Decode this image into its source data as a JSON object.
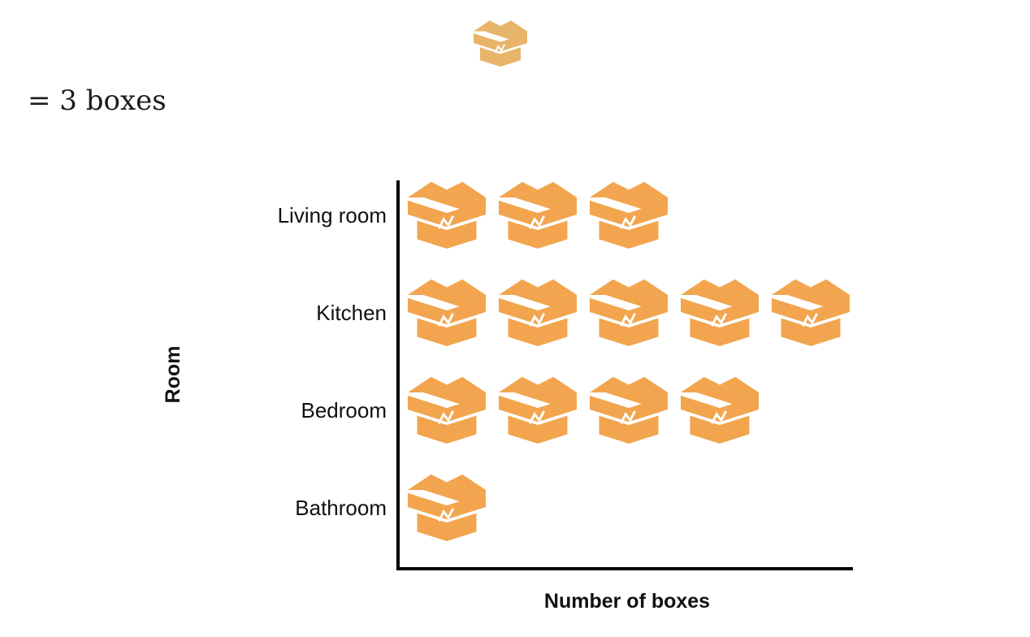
{
  "legend": {
    "icon": "box-icon",
    "text": "= 3 boxes",
    "value_per_icon": 3
  },
  "colors": {
    "icon": "#f2a54e",
    "key_icon": "#e8b46a",
    "axis": "#000000"
  },
  "chart_data": {
    "type": "pictograph",
    "icon": "box-icon",
    "categories": [
      "Living room",
      "Kitchen",
      "Bedroom",
      "Bathroom"
    ],
    "icon_counts": [
      3,
      5,
      4,
      1
    ],
    "values": [
      9,
      15,
      12,
      3
    ],
    "xlabel": "Number of boxes",
    "ylabel": "Room",
    "grid": false
  }
}
